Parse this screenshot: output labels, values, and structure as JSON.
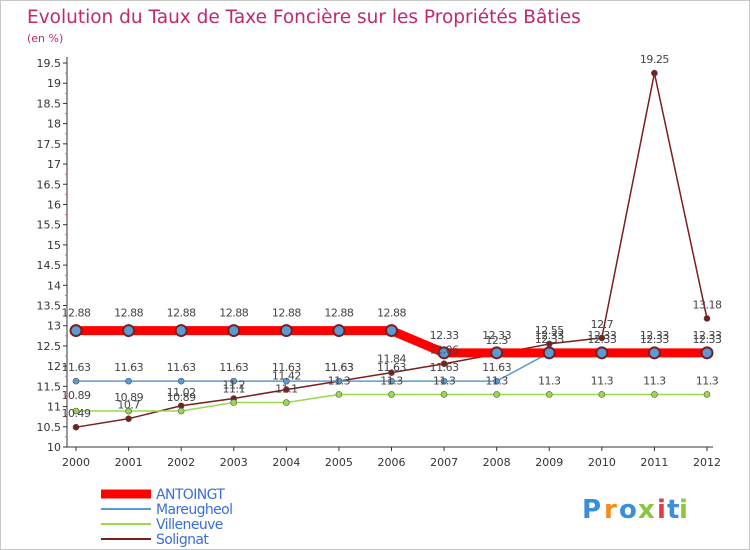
{
  "chart_data": {
    "type": "line",
    "title": "Evolution du Taux de Taxe Foncière sur les Propriétés Bâties",
    "ylabel": "(en %)",
    "xlabel": "",
    "ylim": [
      10,
      19.5
    ],
    "y_ticks": [
      "10",
      "10.5",
      "11",
      "11.5",
      "12",
      "12.5",
      "13",
      "13.5",
      "14",
      "14.5",
      "15",
      "15.5",
      "16",
      "16.5",
      "17",
      "17.5",
      "18",
      "18.5",
      "19",
      "19.5"
    ],
    "categories": [
      "2000",
      "2001",
      "2002",
      "2003",
      "2004",
      "2005",
      "2006",
      "2007",
      "2008",
      "2009",
      "2010",
      "2011",
      "2012"
    ],
    "grid": false,
    "legend_position": "bottom-left",
    "series": [
      {
        "name": "ANTOINGT",
        "color": "#ff0000",
        "values": [
          12.88,
          12.88,
          12.88,
          12.88,
          12.88,
          12.88,
          12.88,
          12.33,
          12.33,
          12.33,
          12.33,
          12.33,
          12.33
        ],
        "labels": [
          "12.88",
          "12.88",
          "12.88",
          "12.88",
          "12.88",
          "12.88",
          "12.88",
          "12.33",
          "12.33",
          "12.33",
          "12.33",
          "12.33",
          "12.33"
        ]
      },
      {
        "name": "Mareugheol",
        "color": "#5b9bd5",
        "values": [
          11.63,
          11.63,
          11.63,
          11.63,
          11.63,
          11.63,
          11.63,
          11.63,
          11.63,
          12.33,
          12.33,
          12.33,
          12.33
        ],
        "labels": [
          "11.63",
          "11.63",
          "11.63",
          "11.63",
          "11.63",
          "11.63",
          "11.63",
          "11.63",
          "11.63",
          "12.33",
          "12.33",
          "12.33",
          "12.33"
        ]
      },
      {
        "name": "Villeneuve",
        "color": "#99d94e",
        "values": [
          10.89,
          10.89,
          10.89,
          11.1,
          11.1,
          11.3,
          11.3,
          11.3,
          11.3,
          11.3,
          11.3,
          11.3,
          11.3
        ],
        "labels": [
          "10.89",
          "10.89",
          "10.89",
          "11.1",
          "11.1",
          "11.3",
          "11.3",
          "11.3",
          "11.3",
          "11.3",
          "11.3",
          "11.3",
          "11.3"
        ]
      },
      {
        "name": "Solignat",
        "color": "#7b1e1e",
        "values": [
          10.49,
          10.7,
          11.02,
          11.2,
          11.42,
          11.63,
          11.84,
          12.06,
          12.3,
          12.55,
          12.7,
          19.25,
          13.18
        ],
        "labels": [
          "10.49",
          "10.7",
          "11.02",
          "11.2",
          "11.42",
          "11.63",
          "11.84",
          "12.06",
          "12.3",
          "12.55",
          "12.7",
          "19.25",
          "13.18"
        ]
      }
    ]
  },
  "logo": {
    "text": "Proxiti",
    "letters": [
      "P",
      "r",
      "o",
      "x",
      "i",
      "t",
      "i"
    ]
  },
  "colors": {
    "title": "#c0286f",
    "axis": "#333333",
    "tick_label": "#333333",
    "data_label": "#444444",
    "logo_letters": [
      "#3a8fd8",
      "#f28c1a",
      "#3a8fd8",
      "#8cc63f",
      "#e63946",
      "#3a8fd8",
      "#8cc63f"
    ]
  }
}
